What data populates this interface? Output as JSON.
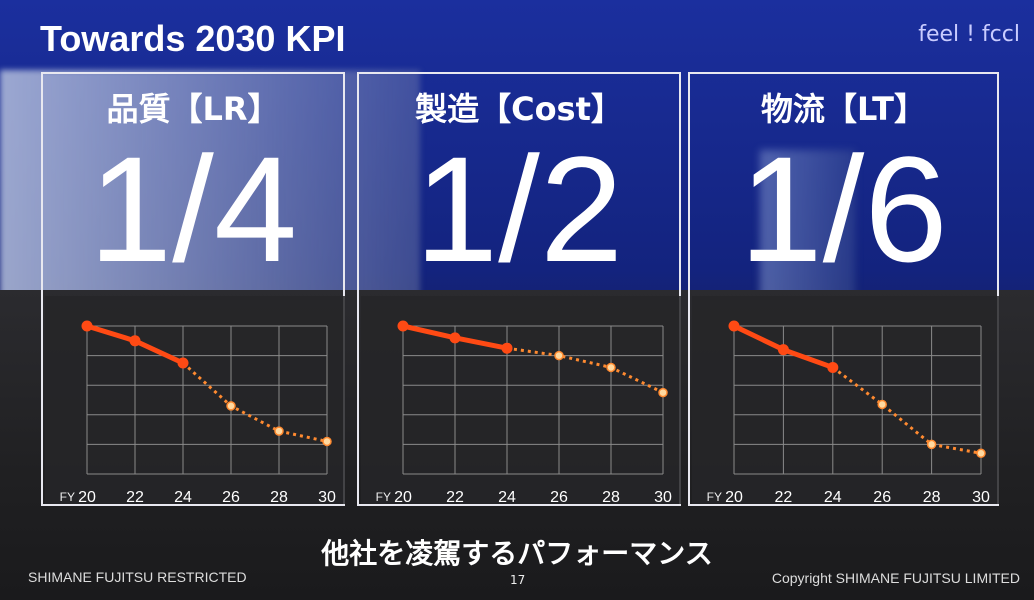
{
  "slide": {
    "title": "Towards 2030 KPI",
    "brand": "feel ! fccl",
    "tagline": "他社を凌駕するパフォーマンス",
    "footer_left": "SHIMANE FUJITSU RESTRICTED",
    "page_number": "17",
    "footer_right": "Copyright SHIMANE FUJITSU LIMITED"
  },
  "panels": [
    {
      "title": "品質【LR】",
      "ratio": "1/4"
    },
    {
      "title": "製造【Cost】",
      "ratio": "1/2"
    },
    {
      "title": "物流【LT】",
      "ratio": "1/6"
    }
  ],
  "colors": {
    "line": "#ff4a14",
    "dashed": "#ff8a30",
    "grid": "#8a8a8a"
  },
  "chart_data": [
    {
      "type": "line",
      "x_prefix": "FY",
      "x": [
        20,
        22,
        24,
        26,
        28,
        30
      ],
      "xlim": [
        20,
        30
      ],
      "ylim": [
        0,
        1
      ],
      "grid": true,
      "series": [
        {
          "solid": [
            [
              20,
              1.0
            ],
            [
              22,
              0.9
            ],
            [
              24,
              0.75
            ]
          ],
          "dashed": [
            [
              24,
              0.75
            ],
            [
              26,
              0.46
            ],
            [
              28,
              0.29
            ],
            [
              30,
              0.22
            ]
          ]
        }
      ]
    },
    {
      "type": "line",
      "x_prefix": "FY",
      "x": [
        20,
        22,
        24,
        26,
        28,
        30
      ],
      "xlim": [
        20,
        30
      ],
      "ylim": [
        0,
        1
      ],
      "grid": true,
      "series": [
        {
          "solid": [
            [
              20,
              1.0
            ],
            [
              22,
              0.92
            ],
            [
              24,
              0.85
            ]
          ],
          "dashed": [
            [
              24,
              0.85
            ],
            [
              26,
              0.8
            ],
            [
              28,
              0.72
            ],
            [
              30,
              0.55
            ]
          ]
        }
      ]
    },
    {
      "type": "line",
      "x_prefix": "FY",
      "x": [
        20,
        22,
        24,
        26,
        28,
        30
      ],
      "xlim": [
        20,
        30
      ],
      "ylim": [
        0,
        1
      ],
      "grid": true,
      "series": [
        {
          "solid": [
            [
              20,
              1.0
            ],
            [
              22,
              0.84
            ],
            [
              24,
              0.72
            ]
          ],
          "dashed": [
            [
              24,
              0.72
            ],
            [
              26,
              0.47
            ],
            [
              28,
              0.2
            ],
            [
              30,
              0.14
            ]
          ]
        }
      ]
    }
  ]
}
